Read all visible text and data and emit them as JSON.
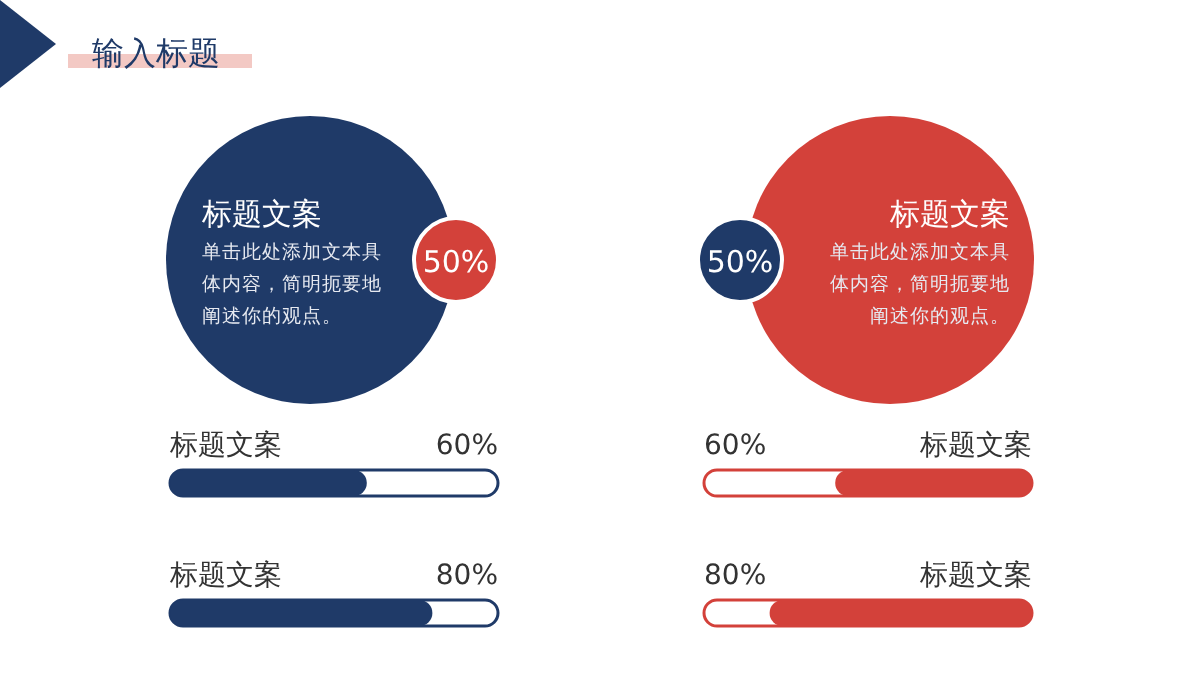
{
  "chart_data": [
    {
      "type": "other",
      "title": "输入标题",
      "subtitle": "标题文案",
      "color": "#1f3a68",
      "annotations": [
        "单击此处添加文本具体内容，简明扼要地阐述你的观点。",
        "50%"
      ]
    },
    {
      "type": "bar",
      "orientation": "horizontal",
      "categories": [
        "标题文案",
        "标题文案"
      ],
      "values": [
        60,
        80
      ],
      "value_labels": [
        "60%",
        "80%"
      ],
      "xlim": [
        0,
        100
      ],
      "color": "#1f3a68",
      "tick_labels": false
    },
    {
      "type": "other",
      "subtitle": "标题文案",
      "color": "#d3413a",
      "annotations": [
        "单击此处添加文本具体内容，简明扼要地阐述你的观点。",
        "50%"
      ]
    },
    {
      "type": "bar",
      "orientation": "horizontal",
      "categories": [
        "标题文案",
        "标题文案"
      ],
      "values": [
        60,
        80
      ],
      "value_labels": [
        "60%",
        "80%"
      ],
      "xlim": [
        100,
        0
      ],
      "color": "#d3413a",
      "tick_labels": false
    }
  ]
}
